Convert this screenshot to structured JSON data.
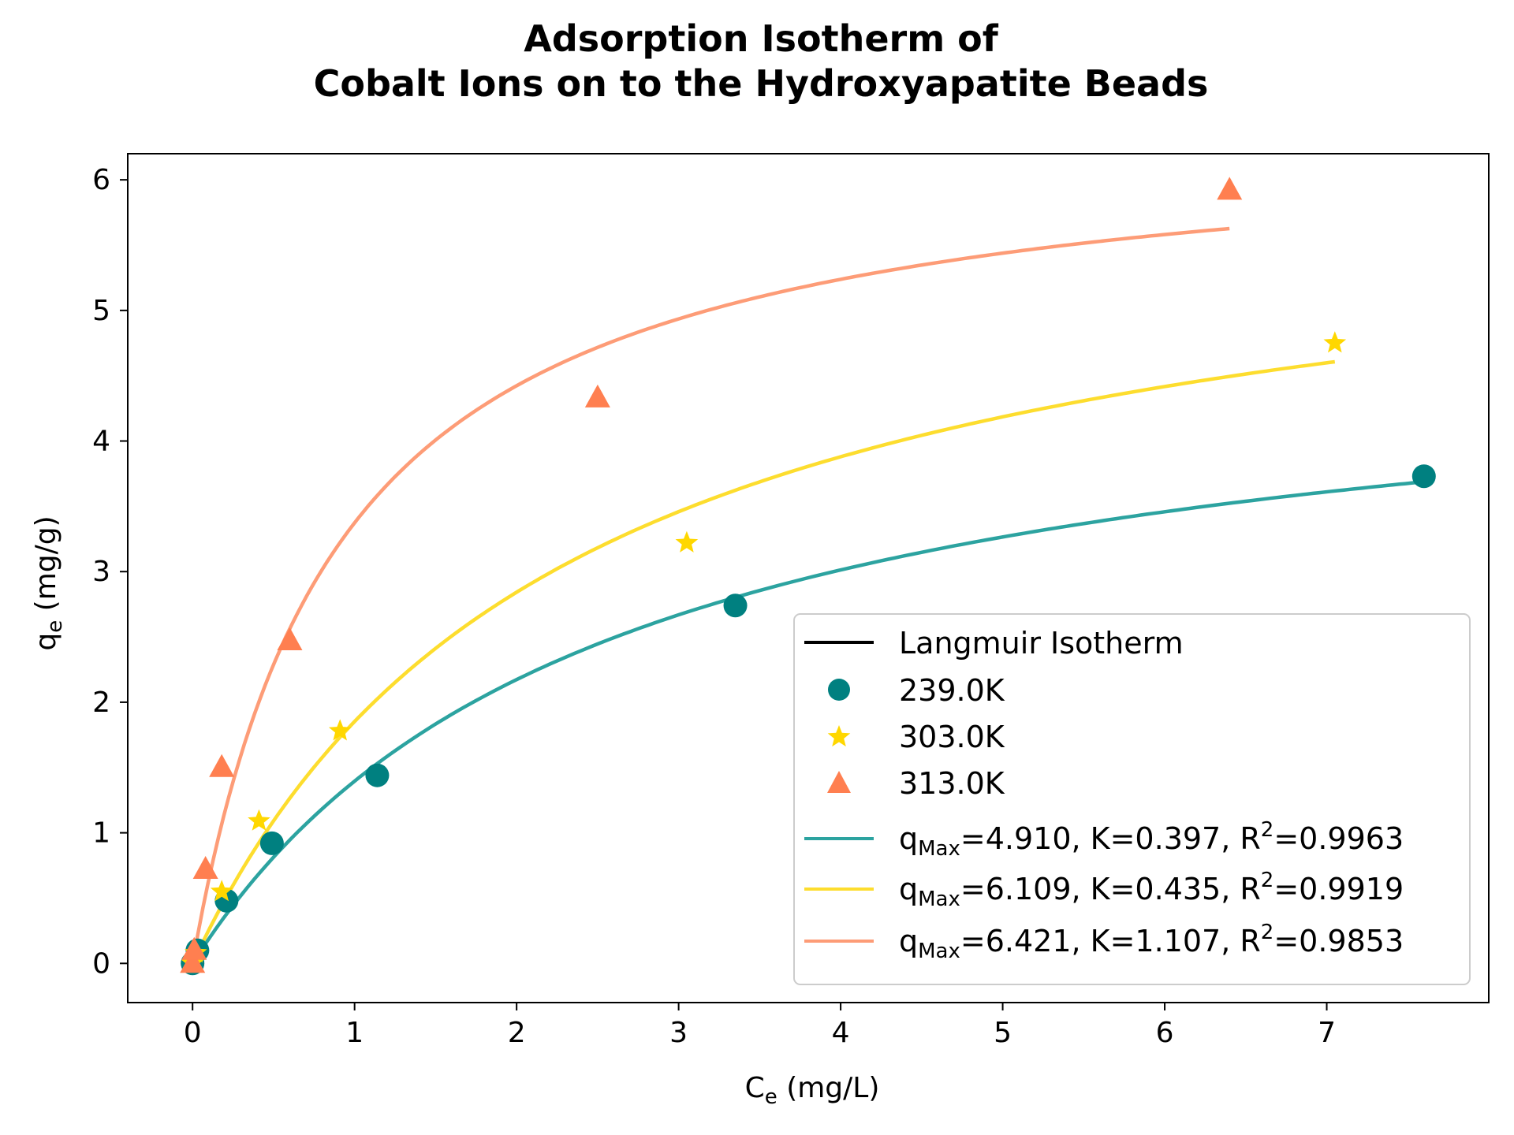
{
  "chart_data": {
    "type": "scatter",
    "title_line1": "Adsorption Isotherm of",
    "title_line2": "Cobalt Ions on to the Hydroxyapatite Beads",
    "xlabel_main": "C",
    "xlabel_sub": "e",
    "xlabel_unit": " (mg/L)",
    "ylabel_main": "q",
    "ylabel_sub": "e",
    "ylabel_unit": " (mg/g)",
    "xlim": [
      -0.4,
      8.0
    ],
    "ylim": [
      -0.3,
      6.2
    ],
    "x_ticks": [
      0,
      1,
      2,
      3,
      4,
      5,
      6,
      7
    ],
    "x_tick_labels": [
      "0",
      "1",
      "2",
      "3",
      "4",
      "5",
      "6",
      "7"
    ],
    "y_ticks": [
      0,
      1,
      2,
      3,
      4,
      5,
      6
    ],
    "y_tick_labels": [
      "0",
      "1",
      "2",
      "3",
      "4",
      "5",
      "6"
    ],
    "grid": false,
    "legend_position": "lower-right",
    "legend_header": "Langmuir Isotherm",
    "series": [
      {
        "name": "239.0K",
        "marker": "circle",
        "color": "#008080",
        "x": [
          0.0,
          0.03,
          0.21,
          0.49,
          1.14,
          3.35,
          7.6
        ],
        "y": [
          0.0,
          0.1,
          0.48,
          0.92,
          1.44,
          2.74,
          3.73
        ]
      },
      {
        "name": "303.0K",
        "marker": "star",
        "color": "#FFD700",
        "x": [
          0.0,
          0.02,
          0.18,
          0.41,
          0.91,
          3.05,
          7.05
        ],
        "y": [
          0.0,
          0.08,
          0.55,
          1.09,
          1.78,
          3.22,
          4.75
        ]
      },
      {
        "name": "313.0K",
        "marker": "triangle",
        "color": "#FF7F50",
        "x": [
          0.0,
          0.01,
          0.08,
          0.18,
          0.6,
          2.5,
          6.4
        ],
        "y": [
          0.0,
          0.1,
          0.72,
          1.5,
          2.47,
          4.33,
          5.92
        ]
      }
    ],
    "fits": [
      {
        "model": "langmuir",
        "qmax": 4.91,
        "K": 0.397,
        "x_max": 7.6,
        "color": "#2ca3a0",
        "label_prefix": "q",
        "label_sub": "Max",
        "label_mid": "=4.910, K=0.397, R",
        "label_sup": "2",
        "label_end": "=0.9963"
      },
      {
        "model": "langmuir",
        "qmax": 6.109,
        "K": 0.435,
        "x_max": 7.05,
        "color": "#FDDD2E",
        "label_prefix": "q",
        "label_sub": "Max",
        "label_mid": "=6.109, K=0.435, R",
        "label_sup": "2",
        "label_end": "=0.9919"
      },
      {
        "model": "langmuir",
        "qmax": 6.421,
        "K": 1.107,
        "x_max": 6.4,
        "color": "#FD9C77",
        "label_prefix": "q",
        "label_sub": "Max",
        "label_mid": "=6.421, K=1.107, R",
        "label_sup": "2",
        "label_end": "=0.9853"
      }
    ]
  }
}
